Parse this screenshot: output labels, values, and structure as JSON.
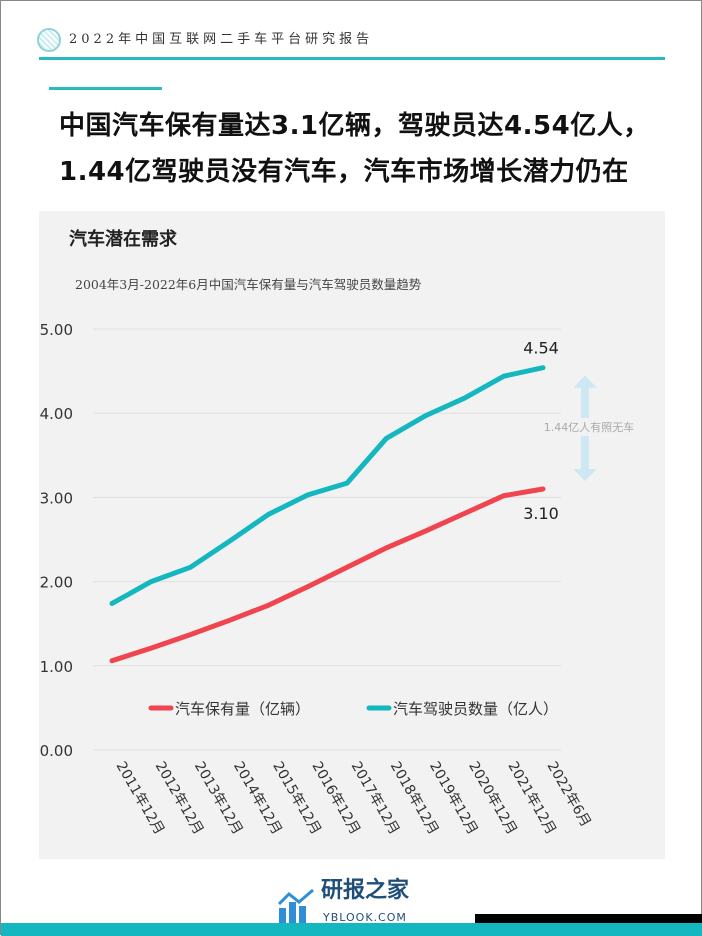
{
  "header": {
    "title": "2022年中国互联网二手车平台研究报告"
  },
  "headline": {
    "line1": "中国汽车保有量达3.1亿辆，驾驶员达4.54亿人，",
    "line2": "1.44亿驾驶员没有汽车，汽车市场增长潜力仍在"
  },
  "panel": {
    "title": "汽车潜在需求",
    "subtitle": "2004年3月-2022年6月中国汽车保有量与汽车驾驶员数量趋势"
  },
  "chart_data": {
    "type": "line",
    "title": "2004年3月-2022年6月中国汽车保有量与汽车驾驶员数量趋势",
    "categories": [
      "2011年12月",
      "2012年12月",
      "2013年12月",
      "2014年12月",
      "2015年12月",
      "2016年12月",
      "2017年12月",
      "2018年12月",
      "2019年12月",
      "2020年12月",
      "2021年12月",
      "2022年6月"
    ],
    "yticks": [
      "0.00",
      "1.00",
      "2.00",
      "3.00",
      "4.00",
      "5.00"
    ],
    "ylim": [
      0,
      5
    ],
    "grid": true,
    "legend_position": "bottom",
    "series": [
      {
        "name": "汽车保有量（亿辆）",
        "color": "#f0444f",
        "values": [
          1.06,
          1.21,
          1.37,
          1.54,
          1.72,
          1.94,
          2.17,
          2.4,
          2.6,
          2.81,
          3.02,
          3.1
        ],
        "end_label": "3.10"
      },
      {
        "name": "汽车驾驶员数量（亿人）",
        "color": "#14b7bf",
        "values": [
          1.74,
          2.0,
          2.17,
          2.48,
          2.8,
          3.03,
          3.17,
          3.7,
          3.97,
          4.18,
          4.44,
          4.54
        ],
        "end_label": "4.54"
      }
    ],
    "annotation": "1.44亿人有照无车"
  },
  "footer": {
    "brand": "研报之家",
    "url": "YBLOOK.COM"
  }
}
